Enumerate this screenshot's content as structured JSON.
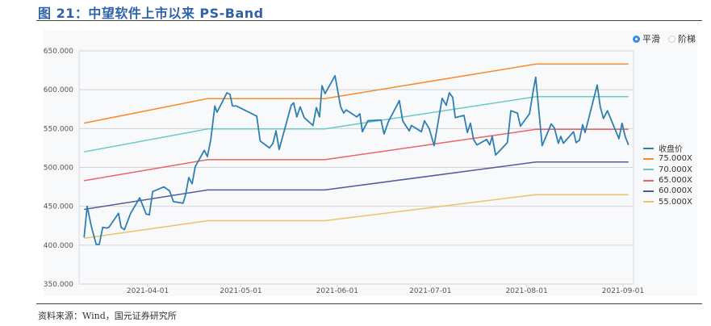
{
  "header": {
    "title": "图 21：中望软件上市以来 PS-Band"
  },
  "footer": {
    "source": "资料来源：Wind，国元证券研究所"
  },
  "controls": {
    "smooth_label": "平滑",
    "step_label": "阶梯",
    "selected": "smooth"
  },
  "chart_data": {
    "type": "line",
    "title": "中望软件上市以来 PS-Band",
    "xlabel": "",
    "ylabel": "",
    "x_unit": "days since 2021-03-01",
    "xlim": [
      8.9,
      187.4
    ],
    "ylim": [
      350,
      650
    ],
    "yticks": [
      350,
      400,
      450,
      500,
      550,
      600,
      650
    ],
    "ytick_labels": [
      "350.000",
      "400.000",
      "450.000",
      "500.000",
      "550.000",
      "600.000",
      "650.000"
    ],
    "xticks": [
      31,
      61,
      92,
      122,
      153,
      184
    ],
    "xtick_labels": [
      "2021-04-01",
      "2021-05-01",
      "2021-06-01",
      "2021-07-01",
      "2021-08-01",
      "2021-09-01"
    ],
    "grid": true,
    "legend_position": "right",
    "series": [
      {
        "name": "收盘价",
        "color": "#2f7fb0",
        "x": [
          10.5,
          11.5,
          12.8,
          14.4,
          15.4,
          16.5,
          17.8,
          18.5,
          21.6,
          22.4,
          23.5,
          25.5,
          28.4,
          30.5,
          31.5,
          32.6,
          36.2,
          38,
          39.3,
          42.4,
          43.2,
          44.2,
          45.3,
          46.3,
          49.2,
          50.2,
          51.3,
          52.6,
          53.3,
          56.5,
          57.5,
          58.3,
          59.6,
          66.1,
          67.2,
          70.2,
          71.3,
          72.3,
          73.3,
          75.2,
          77.2,
          78,
          79,
          80.1,
          81.4,
          84.2,
          85.3,
          86.3,
          87.1,
          88.1,
          91.3,
          93.1,
          94.1,
          94.9,
          98.3,
          99.3,
          100.1,
          101.9,
          106.1,
          107.1,
          108.4,
          112,
          113.1,
          115.2,
          115.9,
          119.1,
          120.1,
          121.6,
          123.2,
          125.8,
          127.1,
          128.1,
          129.2,
          130,
          132.8,
          133.9,
          134.9,
          135.9,
          137,
          140.1,
          141.1,
          141.9,
          143,
          146.8,
          147.9,
          150,
          151,
          153.9,
          155.2,
          155.9,
          158,
          160.9,
          161.9,
          163.2,
          164,
          164.8,
          168.1,
          168.9,
          170,
          171,
          171.8,
          175.7,
          176.7,
          177.7,
          179,
          182.7,
          183.7,
          184.7,
          185.8
        ],
        "y": [
          410,
          450,
          425,
          401,
          401,
          423,
          422,
          423,
          441,
          423,
          420,
          441,
          461,
          440,
          439,
          469,
          475,
          470,
          456,
          454,
          465,
          487,
          479,
          501,
          522,
          514,
          536,
          579,
          571,
          596,
          594,
          579,
          579,
          566,
          534,
          525,
          531,
          547,
          523,
          551,
          580,
          583,
          565,
          578,
          564,
          554,
          577,
          565,
          605,
          595,
          618,
          578,
          570,
          574,
          565,
          569,
          546,
          560,
          561,
          543,
          558,
          586,
          560,
          547,
          554,
          546,
          560,
          550,
          528,
          589,
          580,
          596,
          590,
          564,
          567,
          545,
          557,
          536,
          529,
          536,
          529,
          540,
          516,
          532,
          573,
          570,
          553,
          569,
          601,
          616,
          528,
          556,
          551,
          531,
          540,
          531,
          546,
          532,
          535,
          555,
          545,
          606,
          578,
          563,
          573,
          537,
          557,
          540,
          529
        ]
      },
      {
        "name": "75.000X",
        "color": "#f58b2e",
        "x": [
          10.5,
          50.3,
          88,
          156,
          185.8
        ],
        "y": [
          557,
          588.5,
          588.5,
          633,
          633
        ]
      },
      {
        "name": "70.000X",
        "color": "#6cc9c8",
        "x": [
          10.5,
          50.3,
          88,
          156,
          185.8
        ],
        "y": [
          520,
          549.5,
          549.5,
          591,
          591
        ]
      },
      {
        "name": "65.000X",
        "color": "#e86468",
        "x": [
          10.5,
          50.3,
          88,
          156,
          185.8
        ],
        "y": [
          483,
          510,
          510,
          549,
          549
        ]
      },
      {
        "name": "60.000X",
        "color": "#535b9c",
        "x": [
          10.5,
          50.3,
          88,
          156,
          185.8
        ],
        "y": [
          446,
          471,
          471,
          507,
          507
        ]
      },
      {
        "name": "55.000X",
        "color": "#e9c563",
        "x": [
          10.5,
          50.3,
          88,
          156,
          185.8
        ],
        "y": [
          409,
          431.5,
          431.5,
          465,
          465
        ]
      }
    ]
  }
}
